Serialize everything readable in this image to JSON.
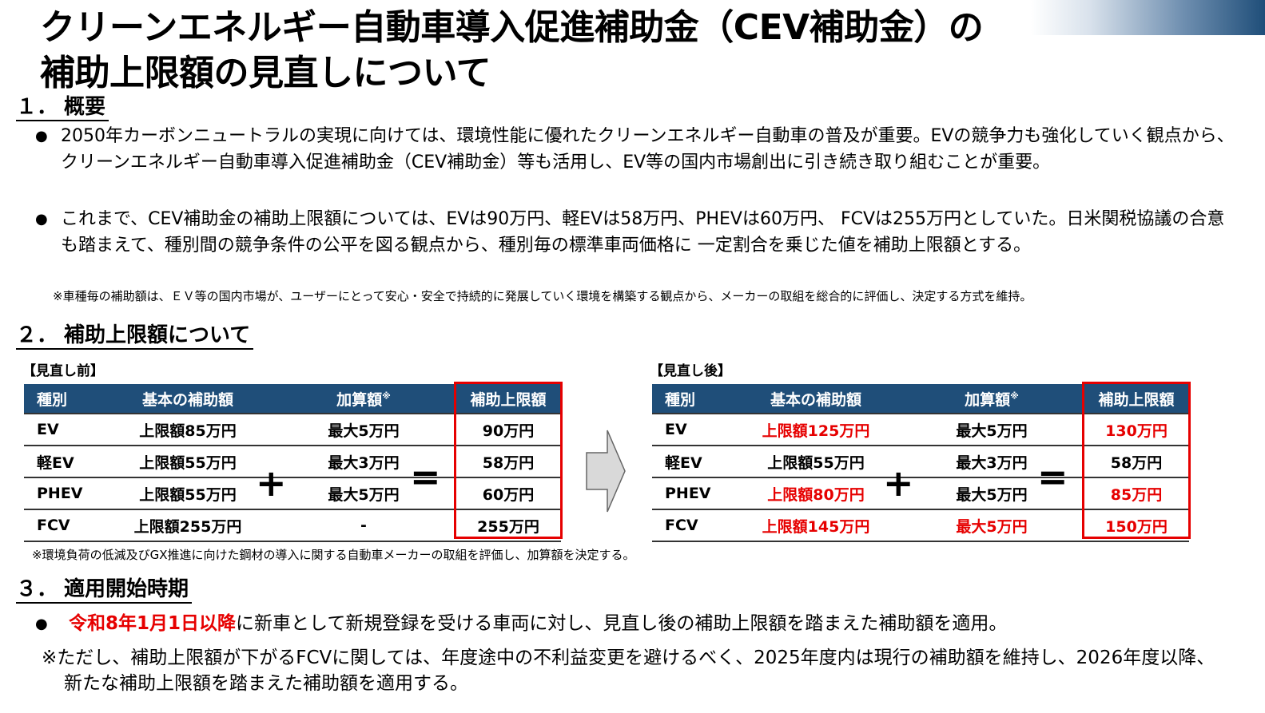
{
  "title": {
    "line1": "クリーンエネルギー自動車導入促進補助金（CEV補助金）の",
    "line2": "補助上限額の見直しについて"
  },
  "section1": {
    "num": "１．",
    "heading": "概要",
    "bullets": [
      "2050年カーボンニュートラルの実現に向けては、環境性能に優れたクリーンエネルギー自動車の普及が重要。EVの競争力も強化していく観点から、クリーンエネルギー自動車導入促進補助金（CEV補助金）等も活用し、EV等の国内市場創出に引き続き取り組むことが重要。",
      "これまで、CEV補助金の補助上限額については、EVは90万円、軽EVは58万円、PHEVは60万円、 FCVは255万円としていた。日米関税協議の合意も踏まえて、種別間の競争条件の公平を図る観点から、種別毎の標準車両価格に 一定割合を乗じた値を補助上限額とする。"
    ],
    "note": "※車種毎の補助額は、ＥＶ等の国内市場が、ユーザーにとって安心・安全で持続的に発展していく環境を構築する観点から、メーカーの取組を総合的に評価し、決定する方式を維持。"
  },
  "section2": {
    "num": "２．",
    "heading": "補助上限額について",
    "headers": {
      "kind": "種別",
      "base": "基本の補助額",
      "add": "加算額",
      "add_mark": "※",
      "total": "補助上限額"
    },
    "plus": "+",
    "equals": "=",
    "before": {
      "caption": "【見直し前】",
      "rows": [
        {
          "kind": "EV",
          "base": "上限額85万円",
          "add": "最大5万円",
          "total": "90万円"
        },
        {
          "kind": "軽EV",
          "base": "上限額55万円",
          "add": "最大3万円",
          "total": "58万円"
        },
        {
          "kind": "PHEV",
          "base": "上限額55万円",
          "add": "最大5万円",
          "total": "60万円"
        },
        {
          "kind": "FCV",
          "base": "上限額255万円",
          "add": "-",
          "total": "255万円"
        }
      ]
    },
    "after": {
      "caption": "【見直し後】",
      "rows": [
        {
          "kind": "EV",
          "base": "上限額125万円",
          "add": "最大5万円",
          "total": "130万円"
        },
        {
          "kind": "軽EV",
          "base": "上限額55万円",
          "add": "最大3万円",
          "total": "58万円"
        },
        {
          "kind": "PHEV",
          "base": "上限額80万円",
          "add": "最大5万円",
          "total": "85万円"
        },
        {
          "kind": "FCV",
          "base": "上限額145万円",
          "add": "最大5万円",
          "total": "150万円"
        }
      ]
    },
    "note": "※環境負荷の低減及びGX推進に向けた鋼材の導入に関する自動車メーカーの取組を評価し、加算額を決定する。"
  },
  "section3": {
    "num": "３．",
    "heading": "適用開始時期",
    "bullet_emph": "令和8年1月1日以降",
    "bullet_rest": "に新車として新規登録を受ける車両に対し、見直し後の補助上限額を踏まえた補助額を適用。",
    "note": "※ただし、補助上限額が下がるFCVに関しては、年度途中の不利益変更を避けるべく、2025年度内は現行の補助額を維持し、2026年度以降、新たな補助上限額を踏まえた補助額を適用する。"
  },
  "colors": {
    "header_bg": "#1f4e79",
    "highlight": "#e60000"
  }
}
